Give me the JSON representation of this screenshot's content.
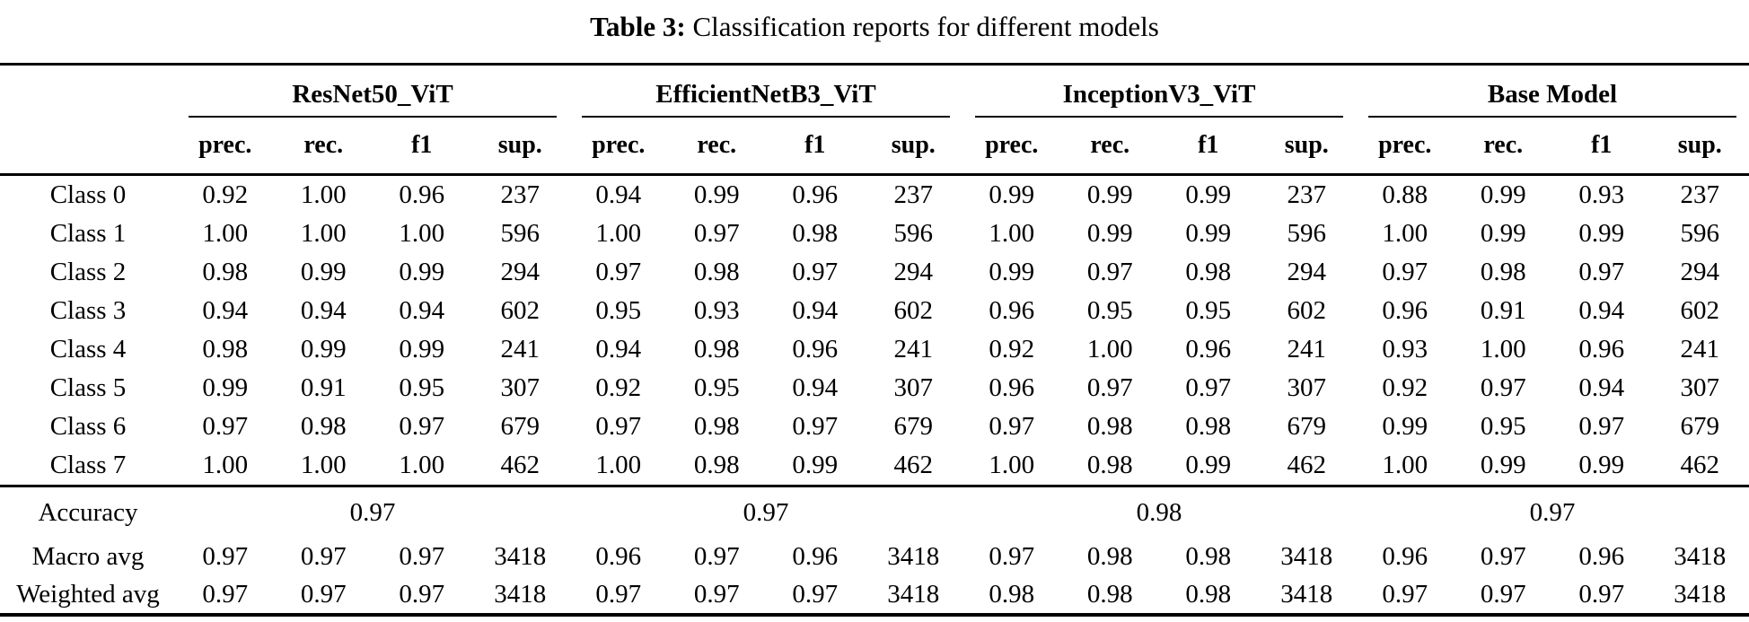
{
  "title": {
    "label": "Table 3:",
    "text": "Classification reports for different models"
  },
  "chart_data": {
    "type": "table",
    "title": "Table 3: Classification reports for different models",
    "groups": [
      "ResNet50_ViT",
      "EfficientNetB3_ViT",
      "InceptionV3_ViT",
      "Base Model"
    ],
    "subcolumns": [
      "prec.",
      "rec.",
      "f1",
      "sup."
    ],
    "class_rows": [
      {
        "label": "Class 0",
        "values": [
          [
            "0.92",
            "1.00",
            "0.96",
            "237"
          ],
          [
            "0.94",
            "0.99",
            "0.96",
            "237"
          ],
          [
            "0.99",
            "0.99",
            "0.99",
            "237"
          ],
          [
            "0.88",
            "0.99",
            "0.93",
            "237"
          ]
        ]
      },
      {
        "label": "Class 1",
        "values": [
          [
            "1.00",
            "1.00",
            "1.00",
            "596"
          ],
          [
            "1.00",
            "0.97",
            "0.98",
            "596"
          ],
          [
            "1.00",
            "0.99",
            "0.99",
            "596"
          ],
          [
            "1.00",
            "0.99",
            "0.99",
            "596"
          ]
        ]
      },
      {
        "label": "Class 2",
        "values": [
          [
            "0.98",
            "0.99",
            "0.99",
            "294"
          ],
          [
            "0.97",
            "0.98",
            "0.97",
            "294"
          ],
          [
            "0.99",
            "0.97",
            "0.98",
            "294"
          ],
          [
            "0.97",
            "0.98",
            "0.97",
            "294"
          ]
        ]
      },
      {
        "label": "Class 3",
        "values": [
          [
            "0.94",
            "0.94",
            "0.94",
            "602"
          ],
          [
            "0.95",
            "0.93",
            "0.94",
            "602"
          ],
          [
            "0.96",
            "0.95",
            "0.95",
            "602"
          ],
          [
            "0.96",
            "0.91",
            "0.94",
            "602"
          ]
        ]
      },
      {
        "label": "Class 4",
        "values": [
          [
            "0.98",
            "0.99",
            "0.99",
            "241"
          ],
          [
            "0.94",
            "0.98",
            "0.96",
            "241"
          ],
          [
            "0.92",
            "1.00",
            "0.96",
            "241"
          ],
          [
            "0.93",
            "1.00",
            "0.96",
            "241"
          ]
        ]
      },
      {
        "label": "Class 5",
        "values": [
          [
            "0.99",
            "0.91",
            "0.95",
            "307"
          ],
          [
            "0.92",
            "0.95",
            "0.94",
            "307"
          ],
          [
            "0.96",
            "0.97",
            "0.97",
            "307"
          ],
          [
            "0.92",
            "0.97",
            "0.94",
            "307"
          ]
        ]
      },
      {
        "label": "Class 6",
        "values": [
          [
            "0.97",
            "0.98",
            "0.97",
            "679"
          ],
          [
            "0.97",
            "0.98",
            "0.97",
            "679"
          ],
          [
            "0.97",
            "0.98",
            "0.98",
            "679"
          ],
          [
            "0.99",
            "0.95",
            "0.97",
            "679"
          ]
        ]
      },
      {
        "label": "Class 7",
        "values": [
          [
            "1.00",
            "1.00",
            "1.00",
            "462"
          ],
          [
            "1.00",
            "0.98",
            "0.99",
            "462"
          ],
          [
            "1.00",
            "0.98",
            "0.99",
            "462"
          ],
          [
            "1.00",
            "0.99",
            "0.99",
            "462"
          ]
        ]
      }
    ],
    "accuracy_row": {
      "label": "Accuracy",
      "values": [
        "0.97",
        "0.97",
        "0.98",
        "0.97"
      ]
    },
    "summary_rows": [
      {
        "label": "Macro avg",
        "values": [
          [
            "0.97",
            "0.97",
            "0.97",
            "3418"
          ],
          [
            "0.96",
            "0.97",
            "0.96",
            "3418"
          ],
          [
            "0.97",
            "0.98",
            "0.98",
            "3418"
          ],
          [
            "0.96",
            "0.97",
            "0.96",
            "3418"
          ]
        ]
      },
      {
        "label": "Weighted avg",
        "values": [
          [
            "0.97",
            "0.97",
            "0.97",
            "3418"
          ],
          [
            "0.97",
            "0.97",
            "0.97",
            "3418"
          ],
          [
            "0.98",
            "0.98",
            "0.98",
            "3418"
          ],
          [
            "0.97",
            "0.97",
            "0.97",
            "3418"
          ]
        ]
      }
    ],
    "colors": {
      "text": "#000000",
      "background": "#ffffff",
      "rule": "#000000"
    }
  }
}
